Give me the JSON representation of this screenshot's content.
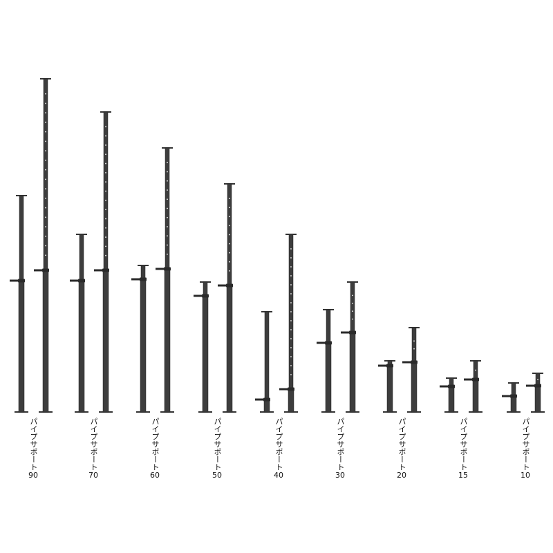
{
  "colors": {
    "pipe": "#3d3d3d",
    "pipe_edge": "#222222",
    "hole": "#f2f2f2",
    "plate": "#333333"
  },
  "products": [
    {
      "name": "パイプサポート",
      "size": "90",
      "min_height": 313,
      "max_height": 482,
      "lever_at": 190
    },
    {
      "name": "パイプサポート",
      "size": "70",
      "min_height": 257,
      "max_height": 434,
      "lever_at": 190
    },
    {
      "name": "パイプサポート",
      "size": "60",
      "min_height": 212,
      "max_height": 382,
      "lever_at": 192
    },
    {
      "name": "パイプサポート",
      "size": "50",
      "min_height": 188,
      "max_height": 330,
      "lever_at": 168
    },
    {
      "name": "パイプサポート",
      "size": "40",
      "min_height": 145,
      "max_height": 257,
      "lever_at": 18
    },
    {
      "name": "パイプサポート",
      "size": "30",
      "min_height": 148,
      "max_height": 188,
      "lever_at": 100
    },
    {
      "name": "パイプサポート",
      "size": "20",
      "min_height": 74,
      "max_height": 122,
      "lever_at": 67
    },
    {
      "name": "パイプサポート",
      "size": "15",
      "min_height": 49,
      "max_height": 74,
      "lever_at": 37
    },
    {
      "name": "パイプサポート",
      "size": "10",
      "min_height": 42,
      "max_height": 56,
      "lever_at": 23
    }
  ]
}
